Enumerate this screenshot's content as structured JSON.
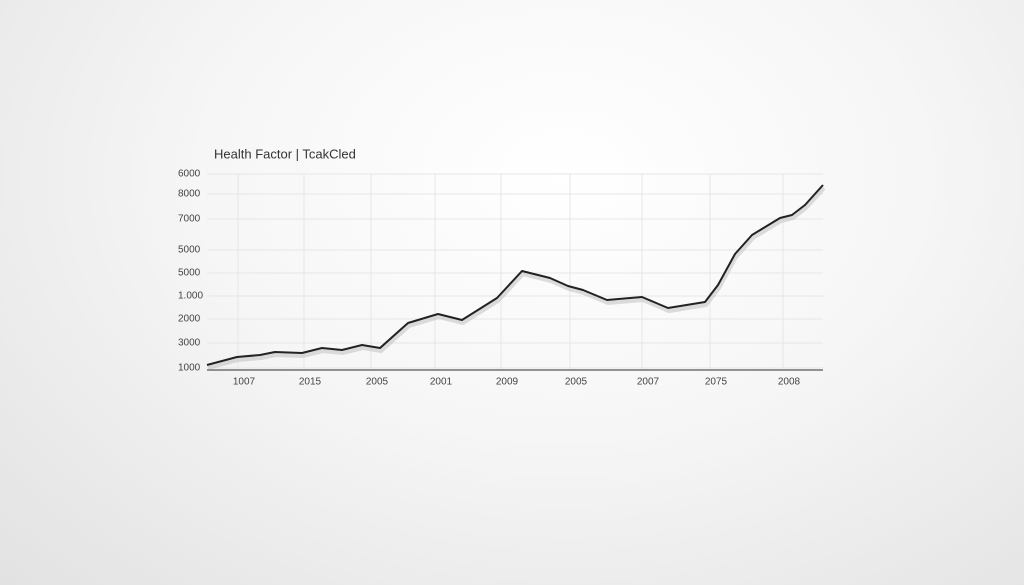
{
  "title": "Health Factor  |  TcakCled",
  "y_labels": [
    "6000",
    "8000",
    "7000",
    "5000",
    "5000",
    "1.000",
    "2000",
    "3000",
    "1000"
  ],
  "x_labels": [
    "1007",
    "2015",
    "2005",
    "2001",
    "2009",
    "2005",
    "2007",
    "2075",
    "2008"
  ]
}
